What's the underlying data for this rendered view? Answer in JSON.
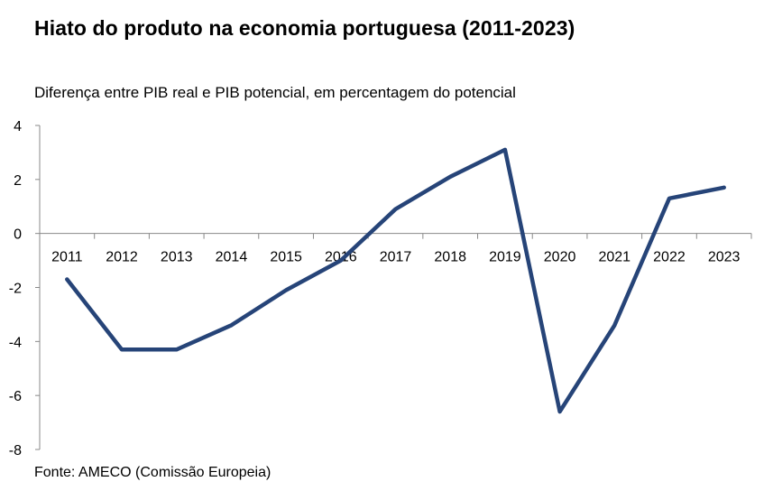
{
  "title": "Hiato do produto na economia portuguesa (2011-2023)",
  "subtitle": "Diferença entre PIB real e PIB potencial, em percentagem do potencial",
  "source": "Fonte: AMECO (Comissão Europeia)",
  "chart_data": {
    "type": "line",
    "title": "Hiato do produto na economia portuguesa (2011-2023)",
    "subtitle": "Diferença entre PIB real e PIB potencial, em percentagem do potencial",
    "xlabel": "",
    "ylabel": "",
    "categories": [
      "2011",
      "2012",
      "2013",
      "2014",
      "2015",
      "2016",
      "2017",
      "2018",
      "2019",
      "2020",
      "2021",
      "2022",
      "2023"
    ],
    "series": [
      {
        "values": [
          -1.7,
          -4.3,
          -4.3,
          -3.4,
          -2.1,
          -1.0,
          0.9,
          2.1,
          3.1,
          -6.6,
          -3.4,
          1.3,
          1.7
        ]
      }
    ],
    "ylim": [
      -8,
      4
    ],
    "yticks": [
      4,
      2,
      0,
      -2,
      -4,
      -6,
      -8
    ],
    "grid": false,
    "legend": "none",
    "line_color": "#264478"
  }
}
